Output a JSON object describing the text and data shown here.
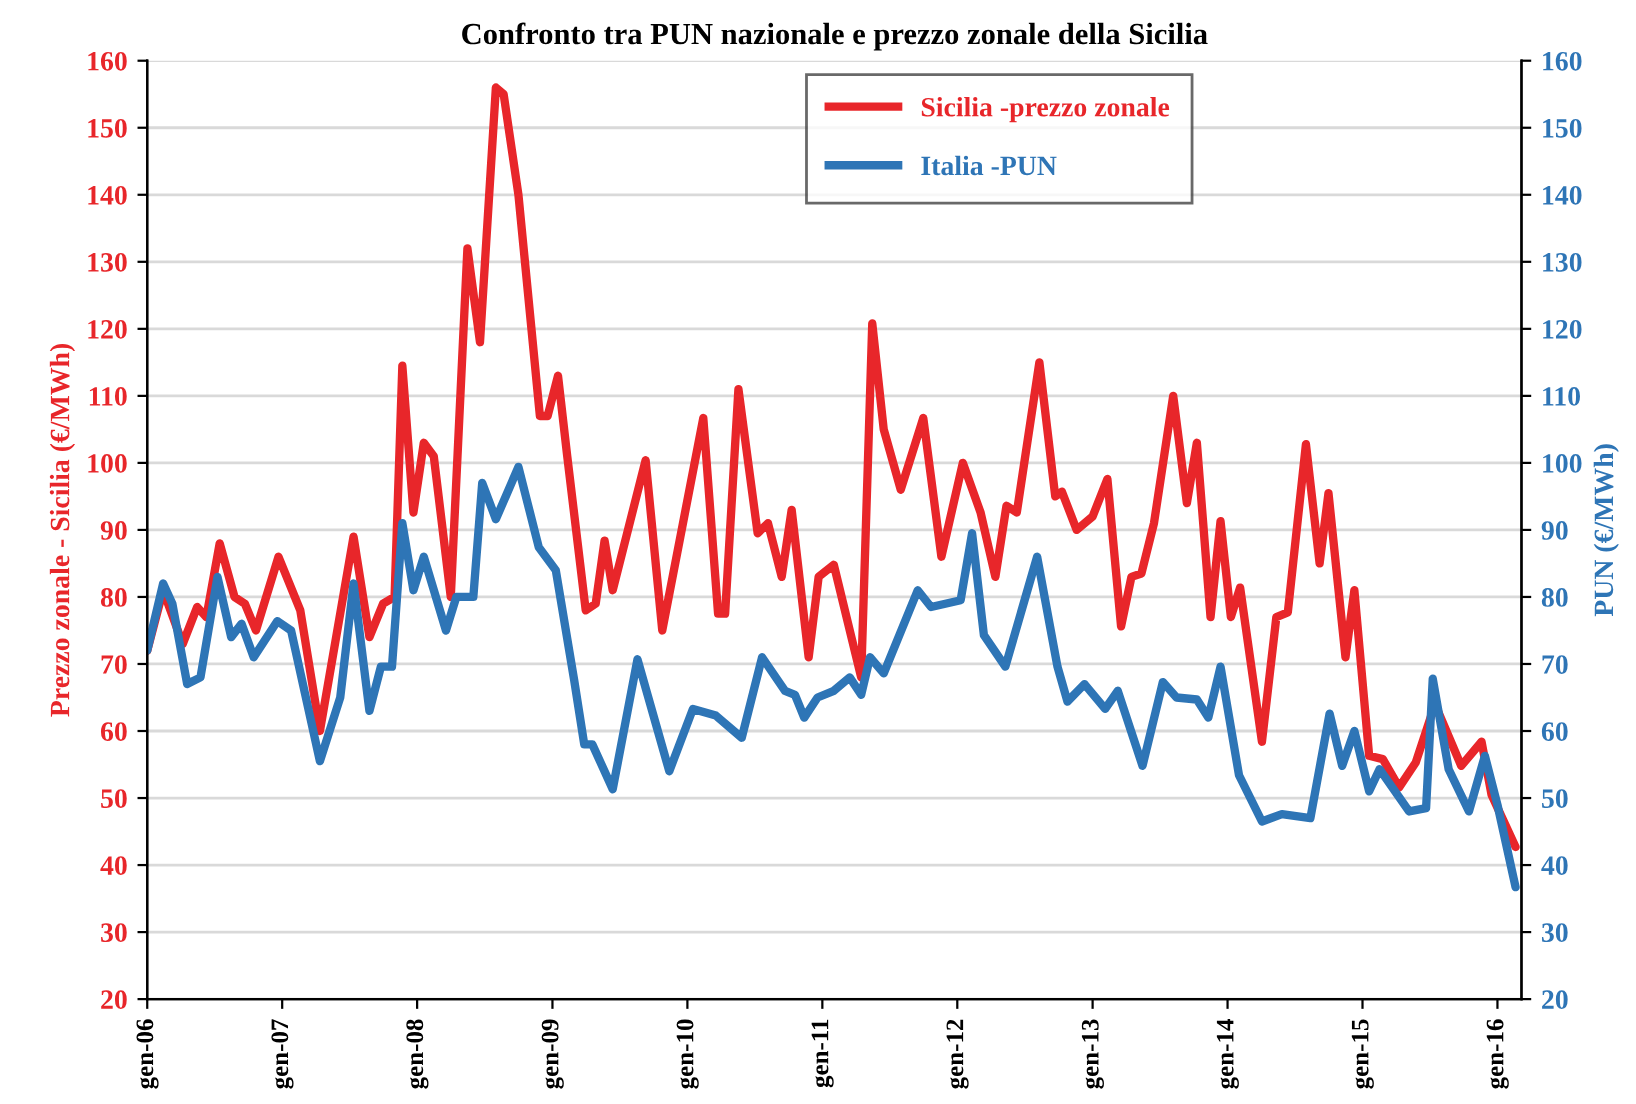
{
  "chart_data": {
    "type": "line",
    "title": "Confronto tra PUN nazionale e prezzo zonale della Sicilia",
    "ylabel": "Prezzo zonale - Sicilia (€/MWh)",
    "y2label": "PUN (€/MWh)",
    "xlim": [
      "2006-01-01",
      "2016-03-06"
    ],
    "xticks": [
      {
        "value": "2006-01",
        "label": "gen-06"
      },
      {
        "value": "2007-01",
        "label": "gen-07"
      },
      {
        "value": "2008-01",
        "label": "gen-08"
      },
      {
        "value": "2009-01",
        "label": "gen-09"
      },
      {
        "value": "2010-01",
        "label": "gen-10"
      },
      {
        "value": "2011-01",
        "label": "gen-11"
      },
      {
        "value": "2012-01",
        "label": "gen-12"
      },
      {
        "value": "2013-01",
        "label": "gen-13"
      },
      {
        "value": "2014-01",
        "label": "gen-14"
      },
      {
        "value": "2015-01",
        "label": "gen-15"
      },
      {
        "value": "2016-01",
        "label": "gen-16"
      }
    ],
    "ylim": [
      20,
      160
    ],
    "yticks": [
      20,
      30,
      40,
      50,
      60,
      70,
      80,
      90,
      100,
      110,
      120,
      130,
      140,
      150,
      160
    ],
    "y2lim": [
      20,
      160
    ],
    "y2ticks": [
      20,
      30,
      40,
      50,
      60,
      70,
      80,
      90,
      100,
      110,
      120,
      130,
      140,
      150,
      160
    ],
    "grid": "y",
    "legend": "top",
    "marker": "none",
    "line_style": "solid",
    "series": [
      {
        "name": "Sicilia -prezzo zonale",
        "color": "#e8262a",
        "x": [
          "2006-01-01",
          "2006-02-13",
          "2006-04-07",
          "2006-05-16",
          "2006-06-10",
          "2006-07-16",
          "2006-08-25",
          "2006-09-22",
          "2006-10-22",
          "2006-12-22",
          "2007-02-19",
          "2007-04-13",
          "2007-07-13",
          "2007-08-25",
          "2007-10-01",
          "2007-11-01",
          "2007-11-22",
          "2007-12-22",
          "2008-01-19",
          "2008-02-15",
          "2008-04-01",
          "2008-05-16",
          "2008-06-19",
          "2008-08-01",
          "2008-08-22",
          "2008-10-01",
          "2008-11-28",
          "2008-12-19",
          "2009-01-16",
          "2009-02-10",
          "2009-04-01",
          "2009-04-28",
          "2009-05-22",
          "2009-06-13",
          "2009-09-10",
          "2009-10-25",
          "2010-02-13",
          "2010-03-25",
          "2010-04-13",
          "2010-05-19",
          "2010-07-10",
          "2010-08-07",
          "2010-09-13",
          "2010-10-10",
          "2010-11-25",
          "2010-12-22",
          "2011-02-01",
          "2011-04-16",
          "2011-05-16",
          "2011-06-16",
          "2011-08-01",
          "2011-10-01",
          "2011-11-19",
          "2012-01-16",
          "2012-03-04",
          "2012-04-13",
          "2012-05-13",
          "2012-06-10",
          "2012-08-10",
          "2012-09-22",
          "2012-10-10",
          "2012-11-19",
          "2013-01-01",
          "2013-02-10",
          "2013-03-19",
          "2013-04-16",
          "2013-05-13",
          "2013-06-16",
          "2013-08-07",
          "2013-09-13",
          "2013-10-10",
          "2013-11-16",
          "2013-12-13",
          "2014-01-10",
          "2014-02-04",
          "2014-04-04",
          "2014-05-13",
          "2014-06-13",
          "2014-08-01",
          "2014-09-07",
          "2014-10-01",
          "2014-11-16",
          "2014-12-10",
          "2015-01-19",
          "2015-02-25",
          "2015-04-10",
          "2015-05-25",
          "2015-07-16",
          "2015-09-25",
          "2015-11-19",
          "2015-12-16",
          "2016-02-19"
        ],
        "values": [
          72,
          81,
          73,
          78.5,
          77,
          88,
          80,
          79,
          75,
          86,
          78,
          60,
          89,
          74,
          79,
          80,
          114.5,
          92.6,
          103,
          101,
          80,
          132,
          118,
          156,
          155,
          140,
          107,
          107,
          113,
          101,
          78,
          79,
          88.4,
          81,
          100.4,
          75,
          106.7,
          77.5,
          77.5,
          111,
          89.5,
          91,
          83,
          93,
          71,
          83,
          84.8,
          68,
          120.8,
          105,
          96,
          106.7,
          86,
          100,
          92.6,
          83,
          93.6,
          92.6,
          115,
          95,
          95.7,
          90,
          92,
          97.6,
          75.6,
          83,
          83.5,
          91,
          110,
          94,
          103,
          77,
          91.3,
          77,
          81.4,
          58.4,
          77,
          77.7,
          102.8,
          85,
          95.5,
          71,
          81,
          56.3,
          55.8,
          51.6,
          55.3,
          64,
          54.8,
          58.4,
          50.5,
          42.7
        ]
      },
      {
        "name": "Italia -PUN",
        "color": "#2e75b6",
        "axis": "y2",
        "x": [
          "2006-01-01",
          "2006-02-13",
          "2006-03-10",
          "2006-04-19",
          "2006-05-25",
          "2006-07-10",
          "2006-08-16",
          "2006-09-13",
          "2006-10-16",
          "2006-12-19",
          "2007-01-25",
          "2007-04-13",
          "2007-06-07",
          "2007-07-13",
          "2007-08-25",
          "2007-09-25",
          "2007-10-25",
          "2007-11-22",
          "2007-12-22",
          "2008-01-19",
          "2008-03-19",
          "2008-04-16",
          "2008-06-01",
          "2008-06-25",
          "2008-08-01",
          "2008-10-01",
          "2008-11-25",
          "2009-01-10",
          "2009-03-01",
          "2009-03-28",
          "2009-04-19",
          "2009-06-13",
          "2009-08-19",
          "2009-11-13",
          "2010-01-16",
          "2010-03-19",
          "2010-05-28",
          "2010-07-22",
          "2010-09-22",
          "2010-10-19",
          "2010-11-13",
          "2010-12-19",
          "2011-02-01",
          "2011-03-16",
          "2011-04-16",
          "2011-05-10",
          "2011-06-16",
          "2011-09-16",
          "2011-10-22",
          "2012-01-10",
          "2012-02-10",
          "2012-03-13",
          "2012-05-10",
          "2012-08-04",
          "2012-09-28",
          "2012-10-25",
          "2012-12-10",
          "2013-02-04",
          "2013-03-10",
          "2013-05-16",
          "2013-07-10",
          "2013-08-16",
          "2013-10-10",
          "2013-11-10",
          "2013-12-13",
          "2014-02-01",
          "2014-04-04",
          "2014-05-28",
          "2014-08-13",
          "2014-10-04",
          "2014-11-07",
          "2014-12-10",
          "2015-01-19",
          "2015-02-16",
          "2015-05-07",
          "2015-06-22",
          "2015-07-10",
          "2015-08-22",
          "2015-10-16",
          "2015-11-28",
          "2016-01-01",
          "2016-02-19"
        ],
        "values": [
          72,
          82,
          79,
          67,
          68,
          83,
          74,
          76,
          71,
          76.4,
          75,
          55.5,
          65,
          82,
          63,
          69.6,
          69.6,
          91,
          81,
          86,
          75,
          80,
          80,
          97,
          91.6,
          99.4,
          87.4,
          84,
          67.5,
          58,
          58,
          51.3,
          70.7,
          54,
          63.3,
          62.3,
          59,
          71,
          66,
          65.4,
          62,
          65,
          66,
          68,
          65.4,
          71,
          68.6,
          81,
          78.5,
          79.5,
          89.5,
          74.3,
          69.6,
          86,
          69.6,
          64.4,
          67,
          63.3,
          66,
          54.8,
          67.3,
          65,
          64.7,
          62,
          69.6,
          53.4,
          46.5,
          47.6,
          47,
          62.6,
          54.8,
          60,
          51,
          54.3,
          48,
          48.5,
          67.8,
          54.3,
          48,
          56.3,
          49,
          36.7
        ]
      }
    ]
  }
}
